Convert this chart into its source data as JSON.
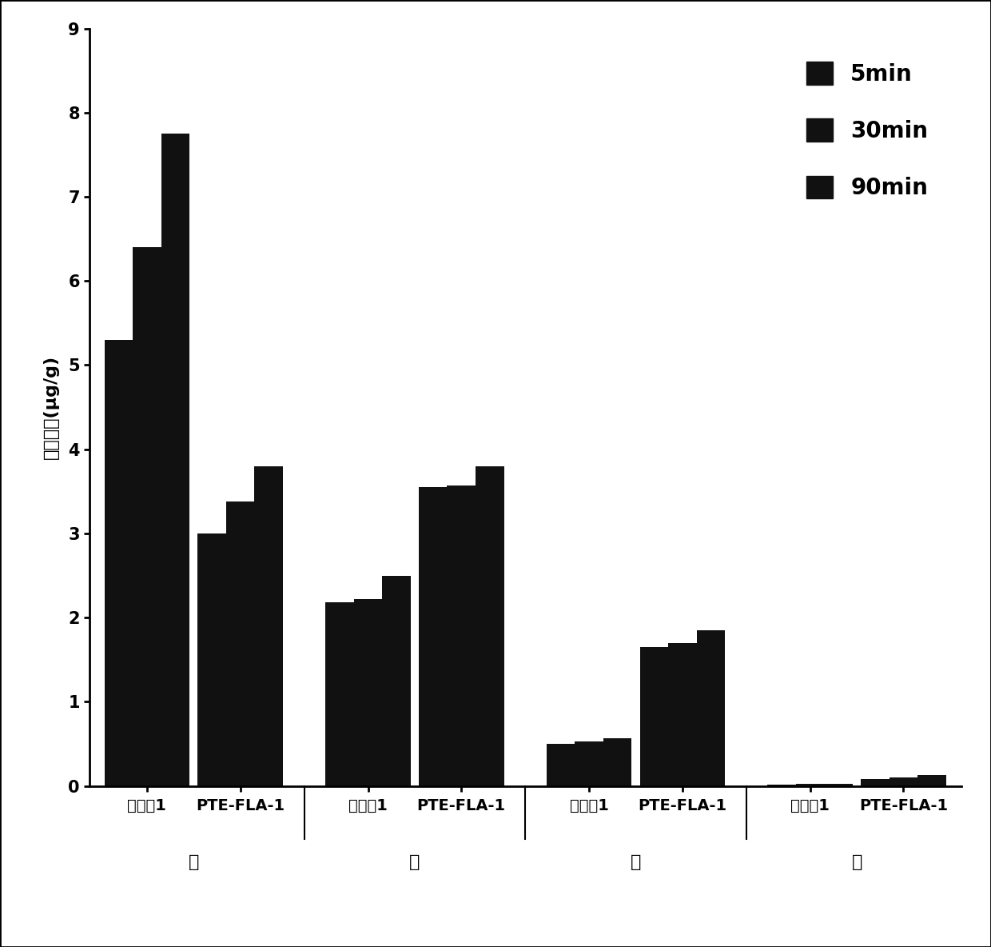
{
  "groups": [
    {
      "label": "实施例1",
      "organ": "心"
    },
    {
      "label": "PTE-FLA-1",
      "organ": "心"
    },
    {
      "label": "实施例1",
      "organ": "肝"
    },
    {
      "label": "PTE-FLA-1",
      "organ": "肝"
    },
    {
      "label": "实施例1",
      "organ": "肆"
    },
    {
      "label": "PTE-FLA-1",
      "organ": "肆"
    },
    {
      "label": "实施例1",
      "organ": "脾"
    },
    {
      "label": "PTE-FLA-1",
      "organ": "脾"
    }
  ],
  "organ_labels": [
    "心",
    "肝",
    "肆",
    "脾"
  ],
  "series": {
    "5min": [
      5.3,
      3.0,
      2.18,
      3.55,
      0.5,
      1.65,
      0.02,
      0.08
    ],
    "30min": [
      6.4,
      3.38,
      2.22,
      3.57,
      0.53,
      1.7,
      0.03,
      0.1
    ],
    "90min": [
      7.75,
      3.8,
      2.5,
      3.8,
      0.57,
      1.85,
      0.03,
      0.13
    ]
  },
  "bar_color": "#111111",
  "ylim": [
    0,
    9
  ],
  "yticks": [
    0,
    1,
    2,
    3,
    4,
    5,
    6,
    7,
    8,
    9
  ],
  "ylabel": "组织浓度(μg/g)",
  "legend_labels": [
    "5min",
    "30min",
    "90min"
  ],
  "background_color": "#ffffff"
}
